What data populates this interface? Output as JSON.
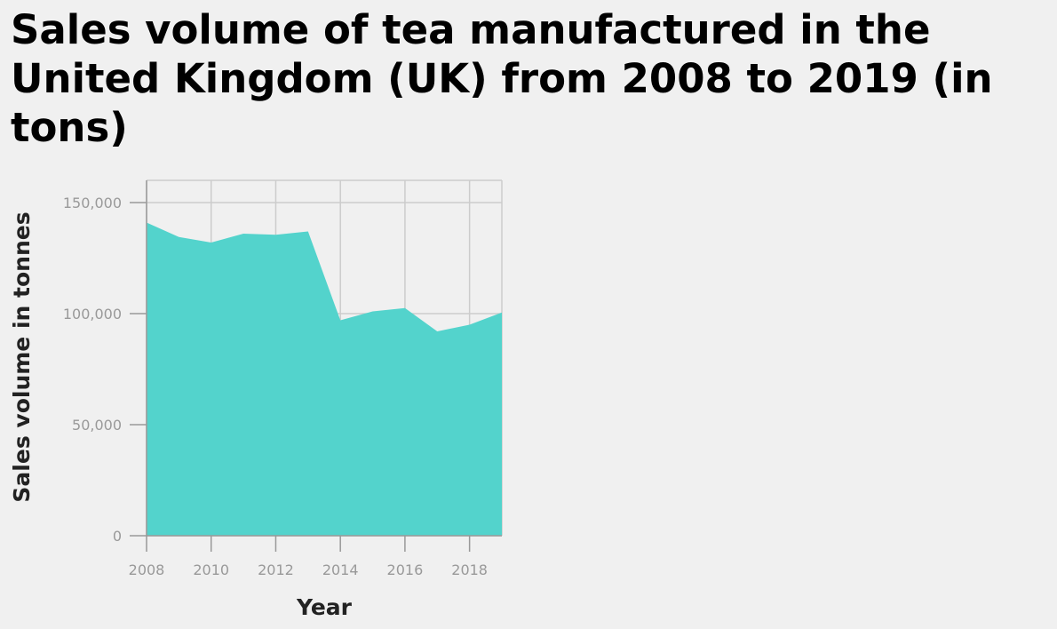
{
  "chart_data": {
    "type": "area",
    "title": "Sales volume of tea manufactured in the United Kingdom (UK) from 2008 to 2019 (in tons)",
    "xlabel": "Year",
    "ylabel": "Sales volume in tonnes",
    "x": [
      2008,
      2009,
      2010,
      2011,
      2012,
      2013,
      2014,
      2015,
      2016,
      2017,
      2018,
      2019
    ],
    "values": [
      141000,
      134500,
      132000,
      136000,
      135500,
      137000,
      97000,
      101000,
      102500,
      92000,
      95000,
      100500
    ],
    "xticks": [
      2008,
      2010,
      2012,
      2014,
      2016,
      2018
    ],
    "xtick_labels": [
      "2008",
      "2010",
      "2012",
      "2014",
      "2016",
      "2018"
    ],
    "yticks": [
      0,
      50000,
      100000,
      150000
    ],
    "ytick_labels": [
      "0",
      "50,000",
      "100,000",
      "150,000"
    ],
    "xlim": [
      2008,
      2019
    ],
    "ylim": [
      0,
      160000
    ],
    "grid": true,
    "fill_color": "#53d3cc"
  }
}
